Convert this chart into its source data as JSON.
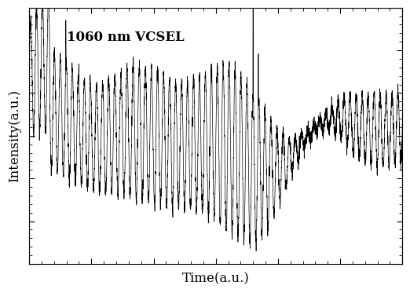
{
  "title": "1060 nm VCSEL",
  "xlabel": "Time(a.u.)",
  "ylabel": "Intensity(a.u.)",
  "title_fontsize": 12,
  "label_fontsize": 12,
  "line_color": "#000000",
  "line_width": 0.5,
  "background_color": "#ffffff",
  "xlim": [
    0,
    1
  ],
  "ylim": [
    0,
    1
  ],
  "seed": 42,
  "n_points": 4000
}
